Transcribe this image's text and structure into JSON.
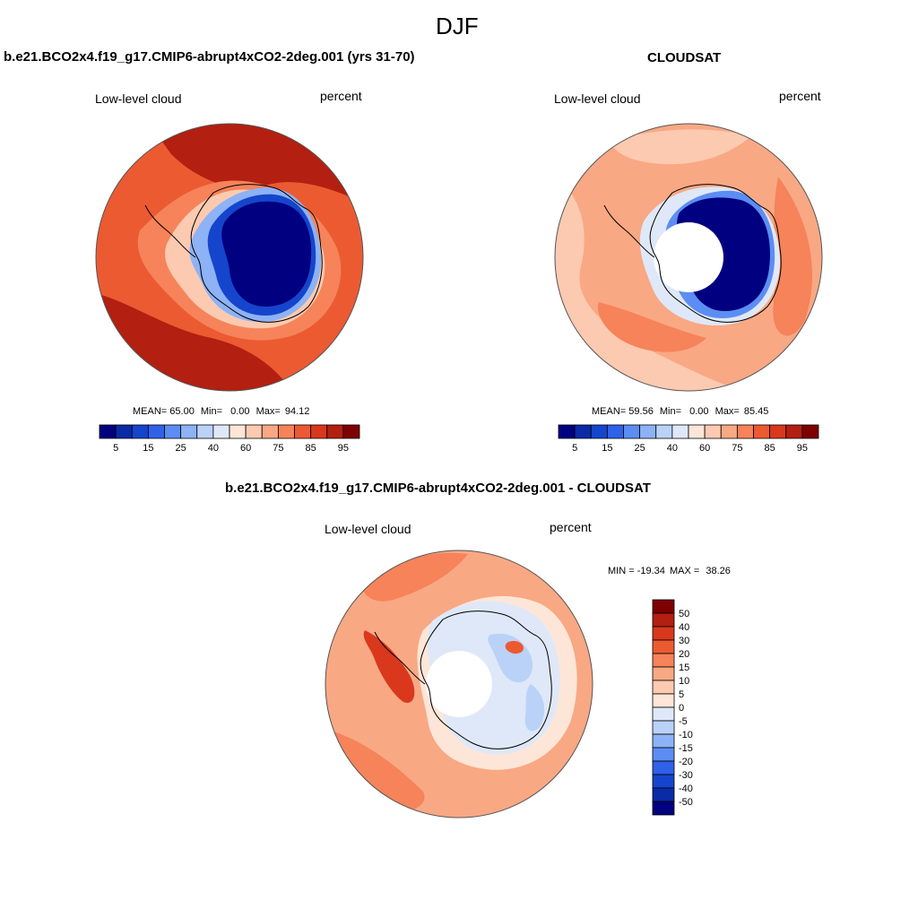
{
  "figure": {
    "title": "DJF"
  },
  "palettes": {
    "abs_colors": [
      "#000080",
      "#0a2aa8",
      "#1545cc",
      "#2f62e8",
      "#5c8df2",
      "#8db2f5",
      "#bad2f8",
      "#dfe8f8",
      "#fde6d8",
      "#fccab0",
      "#f9a884",
      "#f6835a",
      "#ec5a32",
      "#d9381c",
      "#b31f10",
      "#7f0000"
    ],
    "diff_colors": [
      "#000080",
      "#0a2aa8",
      "#1545cc",
      "#2f62e8",
      "#5c8df2",
      "#8db2f5",
      "#bad2f8",
      "#dfe8f8",
      "#fde6d8",
      "#fccab0",
      "#f9a884",
      "#f6835a",
      "#ec5a32",
      "#d9381c",
      "#b31f10",
      "#7f0000"
    ],
    "pole_hole": "#ffffff"
  },
  "chart_data": [
    {
      "type": "heatmap",
      "subtype": "south-polar-stereographic-map",
      "title": "b.e21.BCO2x4.f19_g17.CMIP6-abrupt4xCO2-2deg.001 (yrs 31-70)",
      "left_label": "Low-level cloud",
      "right_label": "percent",
      "stats": {
        "mean_label": "MEAN=",
        "mean": "65.00",
        "min_label": "Min=",
        "min": "0.00",
        "max_label": "Max=",
        "max": "94.12"
      },
      "colorbar": {
        "orientation": "horizontal",
        "levels": [
          5,
          10,
          15,
          20,
          25,
          30,
          40,
          50,
          60,
          70,
          75,
          80,
          85,
          90,
          95
        ],
        "tick_labels": [
          "5",
          "15",
          "25",
          "40",
          "60",
          "75",
          "85",
          "95"
        ]
      },
      "pole_hole": false
    },
    {
      "type": "heatmap",
      "subtype": "south-polar-stereographic-map",
      "title": "CLOUDSAT",
      "left_label": "Low-level cloud",
      "right_label": "percent",
      "stats": {
        "mean_label": "MEAN=",
        "mean": "59.56",
        "min_label": "Min=",
        "min": "0.00",
        "max_label": "Max=",
        "max": "85.45"
      },
      "colorbar": {
        "orientation": "horizontal",
        "levels": [
          5,
          10,
          15,
          20,
          25,
          30,
          40,
          50,
          60,
          70,
          75,
          80,
          85,
          90,
          95
        ],
        "tick_labels": [
          "5",
          "15",
          "25",
          "40",
          "60",
          "75",
          "85",
          "95"
        ]
      },
      "pole_hole": true
    },
    {
      "type": "heatmap",
      "subtype": "south-polar-stereographic-map-difference",
      "title": "b.e21.BCO2x4.f19_g17.CMIP6-abrupt4xCO2-2deg.001 - CLOUDSAT",
      "left_label": "Low-level cloud",
      "right_label": "percent",
      "stats": {
        "min_label": "MIN =",
        "min": "-19.34",
        "max_label": "MAX =",
        "max": "38.26"
      },
      "colorbar": {
        "orientation": "vertical",
        "levels": [
          -50,
          -40,
          -30,
          -20,
          -15,
          -10,
          -5,
          0,
          5,
          10,
          15,
          20,
          30,
          40,
          50
        ],
        "tick_labels": [
          "50",
          "40",
          "30",
          "20",
          "15",
          "10",
          "5",
          "0",
          "-5",
          "-10",
          "-15",
          "-20",
          "-30",
          "-40",
          "-50"
        ]
      },
      "pole_hole": true
    }
  ]
}
